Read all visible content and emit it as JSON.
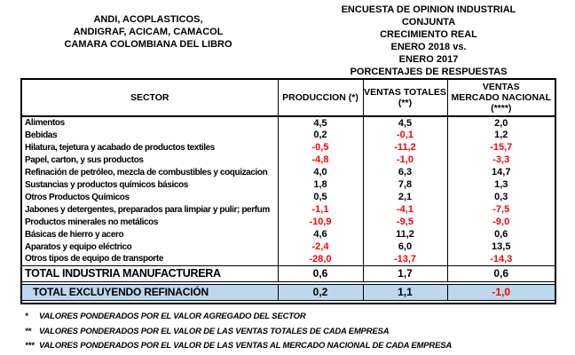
{
  "header_left": {
    "line1": "ANDI, ACOPLASTICOS,",
    "line2": "ANDIGRAF, ACICAM, CAMACOL",
    "line3": "CAMARA COLOMBIANA DEL LIBRO"
  },
  "header_right": {
    "line1": "ENCUESTA DE OPINION INDUSTRIAL CONJUNTA",
    "line2": "CRECIMIENTO REAL",
    "line3": "ENERO 2018 vs.",
    "line4": "ENERO 2017",
    "line5": "PORCENTAJES DE RESPUESTAS"
  },
  "table": {
    "columns": {
      "sector": "SECTOR",
      "produccion": {
        "line1": "PRODUCCION (*)"
      },
      "ventas_totales": {
        "line1": "VENTAS TOTALES",
        "line2": "(**)"
      },
      "ventas_mercado": {
        "line1": "VENTAS",
        "line2": "MERCADO NACIONAL",
        "line3": "(****)"
      }
    },
    "rows": [
      {
        "sector": "Alimentos",
        "produccion": "4,5",
        "ventas_totales": "4,5",
        "ventas_mercado": "2,0"
      },
      {
        "sector": "Bebidas",
        "produccion": "0,2",
        "ventas_totales": "-0,1",
        "ventas_mercado": "1,2"
      },
      {
        "sector": "Hilatura, tejetura y acabado de productos textiles",
        "produccion": "-0,5",
        "ventas_totales": "-11,2",
        "ventas_mercado": "-15,7"
      },
      {
        "sector": "Papel, carton, y sus productos",
        "produccion": "-4,8",
        "ventas_totales": "-1,0",
        "ventas_mercado": "-3,3"
      },
      {
        "sector": "Refinación de petróleo, mezcla de combustibles y coquizacion",
        "produccion": "4,0",
        "ventas_totales": "6,3",
        "ventas_mercado": "14,7"
      },
      {
        "sector": "Sustancias y productos químicos básicos",
        "produccion": "1,8",
        "ventas_totales": "7,8",
        "ventas_mercado": "1,3"
      },
      {
        "sector": "Otros Productos Químicos",
        "produccion": "0,5",
        "ventas_totales": "2,1",
        "ventas_mercado": "0,3"
      },
      {
        "sector": "Jabones y detergentes, preparados para limpiar y pulir; perfum",
        "produccion": "-1,1",
        "ventas_totales": "-4,1",
        "ventas_mercado": "-7,5"
      },
      {
        "sector": "Productos minerales no metálicos",
        "produccion": "-10,9",
        "ventas_totales": "-9,5",
        "ventas_mercado": "-9,0"
      },
      {
        "sector": "Básicas de hierro y acero",
        "produccion": "4,6",
        "ventas_totales": "11,2",
        "ventas_mercado": "0,6"
      },
      {
        "sector": "Aparatos y equipo eléctrico",
        "produccion": "-2,4",
        "ventas_totales": "6,0",
        "ventas_mercado": "13,5"
      },
      {
        "sector": "Otros tipos de equipo de transporte",
        "produccion": "-28,0",
        "ventas_totales": "-13,7",
        "ventas_mercado": "-14,3"
      }
    ],
    "total_industria": {
      "label": "TOTAL INDUSTRIA MANUFACTURERA",
      "produccion": "0,6",
      "ventas_totales": "1,7",
      "ventas_mercado": "0,6"
    },
    "total_excluyendo": {
      "label": "TOTAL EXCLUYENDO REFINACIÓN",
      "produccion": "0,2",
      "ventas_totales": "1,1",
      "ventas_mercado": "-1,0"
    }
  },
  "footnotes": [
    {
      "marker": "*",
      "text": "VALORES PONDERADOS POR EL VALOR AGREGADO DEL SECTOR"
    },
    {
      "marker": "**",
      "text": "VALORES PONDERADOS POR EL VALOR DE LAS VENTAS TOTALES DE CADA EMPRESA"
    },
    {
      "marker": "***",
      "text": "VALORES PONDERADOS POR EL VALOR DE LAS VENTAS AL MERCADO NACIONAL DE CADA EMPRESA"
    }
  ],
  "colors": {
    "negative_value_red": "#ff0000",
    "highlight_row_blue": "#bdd7ee",
    "border_black": "#000000"
  }
}
